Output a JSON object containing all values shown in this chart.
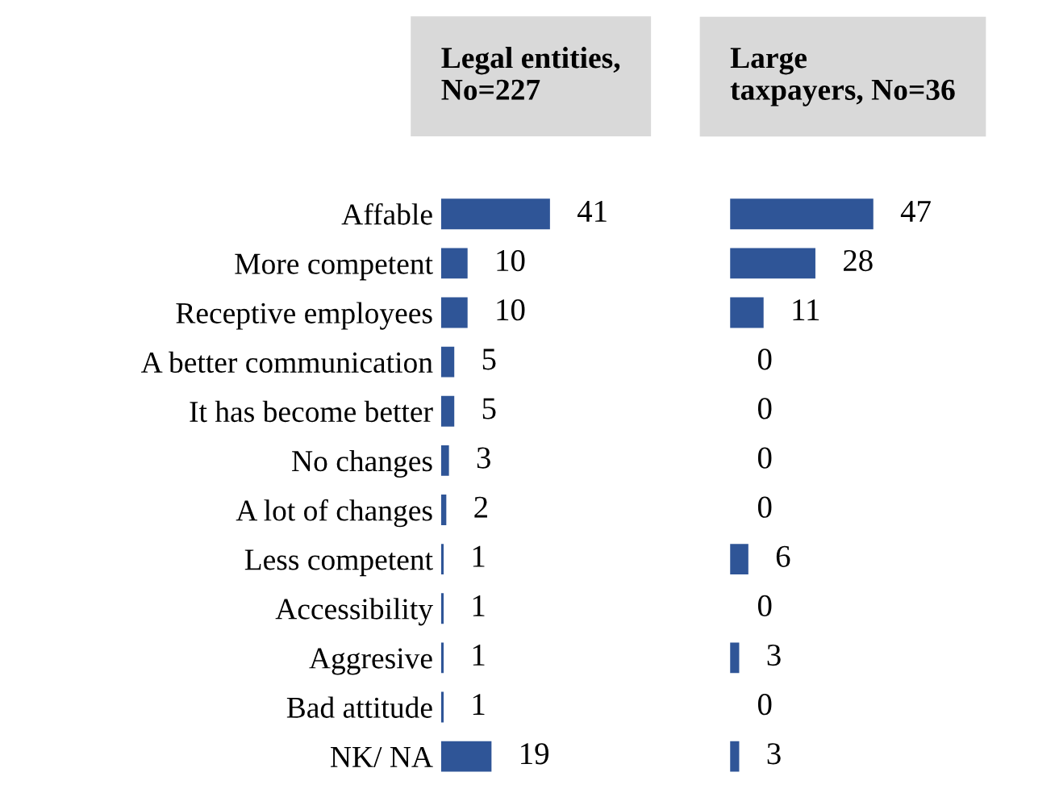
{
  "chart_data": [
    {
      "type": "bar",
      "orientation": "horizontal",
      "title": "Legal entities,\nNo=227",
      "categories": [
        "Affable",
        "More competent",
        "Receptive employees",
        "A better communication",
        "It has become better",
        "No changes",
        "A lot of changes",
        "Less competent",
        "Accessibility",
        "Aggresive",
        "Bad attitude",
        "NK/ NA"
      ],
      "values": [
        41,
        10,
        10,
        5,
        5,
        3,
        2,
        1,
        1,
        1,
        1,
        19
      ],
      "color": "#2f5597",
      "data_labels": true,
      "tick_labels": "y"
    },
    {
      "type": "bar",
      "orientation": "horizontal",
      "title": "Large\ntaxpayers, No=36",
      "categories": [
        null,
        null,
        null,
        null,
        null,
        null,
        null,
        null,
        null,
        null,
        null,
        null
      ],
      "values": [
        47,
        28,
        11,
        0,
        0,
        0,
        0,
        6,
        0,
        3,
        0,
        3
      ],
      "color": "#2f5597",
      "data_labels": true,
      "tick_labels": false
    }
  ]
}
